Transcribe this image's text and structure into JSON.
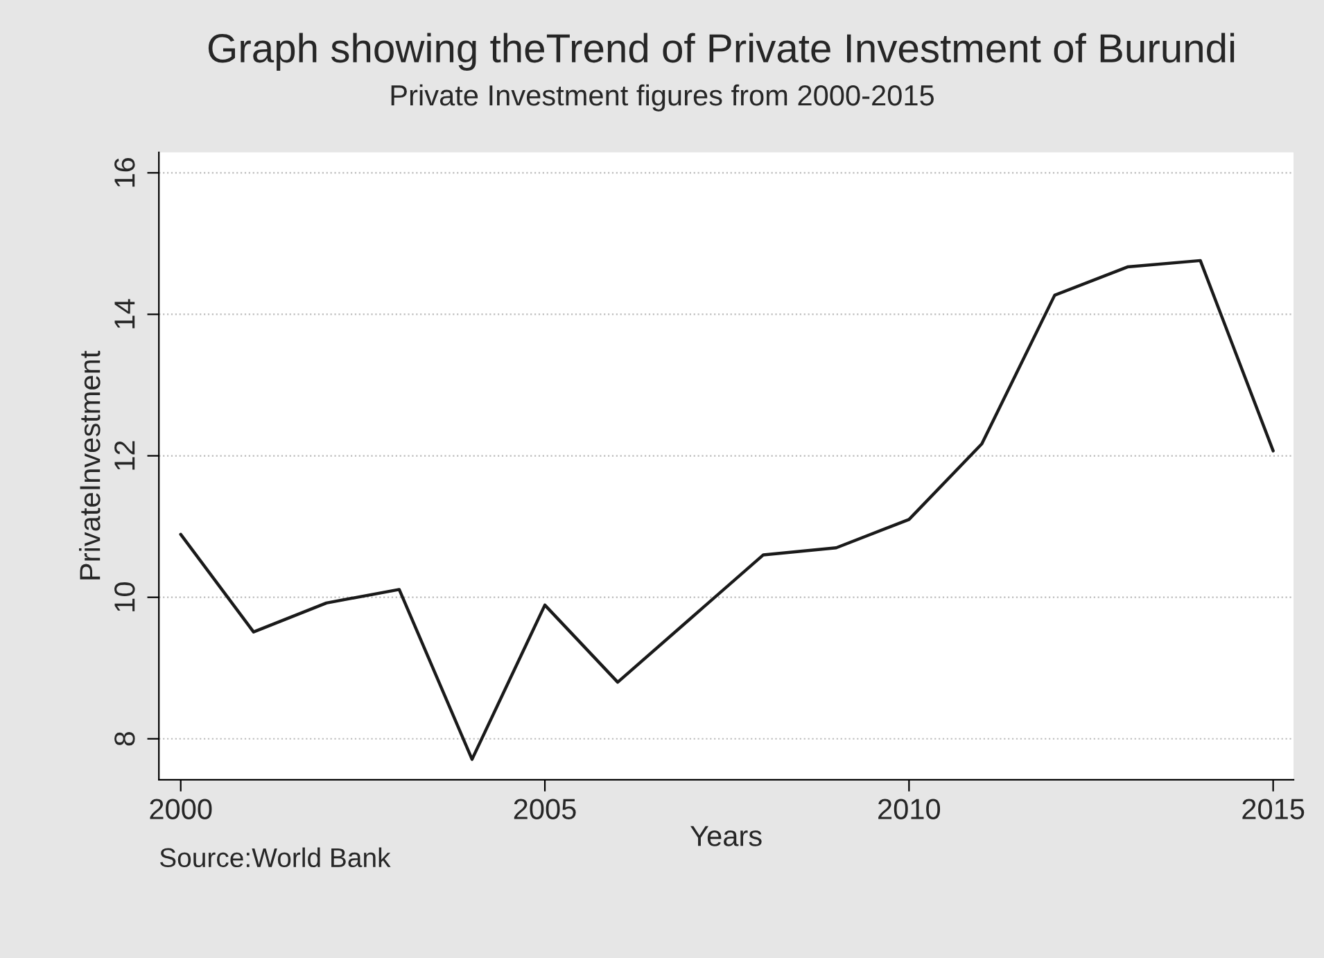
{
  "chart_data": {
    "type": "line",
    "title": "Graph showing theTrend of Private Investment of Burundi",
    "subtitle": "Private Investment figures from 2000-2015",
    "xlabel": "Years",
    "ylabel": "PrivateInvestment",
    "x": [
      2000,
      2001,
      2002,
      2003,
      2004,
      2005,
      2006,
      2007,
      2008,
      2009,
      2010,
      2011,
      2012,
      2013,
      2014,
      2015
    ],
    "series": [
      {
        "color": "#1a1a1a",
        "values": [
          10.89,
          9.51,
          9.92,
          10.11,
          7.71,
          9.89,
          8.8,
          9.7,
          10.6,
          10.7,
          11.1,
          12.17,
          14.27,
          14.67,
          14.76,
          12.07
        ]
      }
    ],
    "xlim": [
      1999.7,
      2015.28
    ],
    "xticks": [
      2000,
      2005,
      2010,
      2015
    ],
    "ylim": [
      7.42,
      16.29
    ],
    "yticks": [
      8,
      10,
      12,
      14,
      16
    ],
    "grid": "y",
    "annotations": [
      "Source:World Bank"
    ]
  }
}
